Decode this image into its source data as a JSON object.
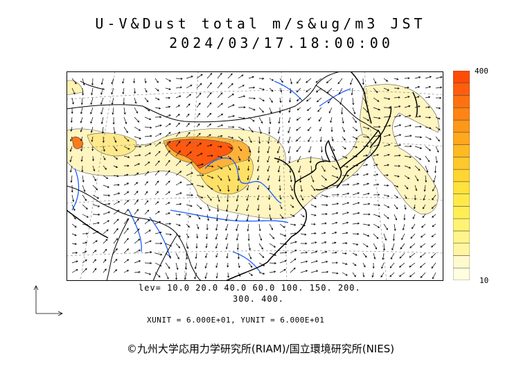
{
  "title": {
    "line1": "U-V&Dust total m/s&ug/m3 JST",
    "line2": "2024/03/17.18:00:00"
  },
  "colorbar": {
    "max_label": "400",
    "min_label": "10",
    "colors": [
      "#ffffe0",
      "#fffacd",
      "#fff5a0",
      "#fff58a",
      "#fff373",
      "#ffef55",
      "#ffe94a",
      "#ffe23c",
      "#ffd532",
      "#ffc82a",
      "#ffb922",
      "#ffa81c",
      "#ff9718",
      "#ff8414",
      "#ff7110",
      "#ff5e0c",
      "#ff4b08"
    ]
  },
  "levels": {
    "line1": "lev= 10.0 20.0 40.0 60.0 100. 150. 200.",
    "line2": "300. 400."
  },
  "units": "XUNIT = 6.000E+01, YUNIT = 6.000E+01",
  "credit": "©九州大学応用力学研究所(RIAM)/国立環境研究所(NIES)",
  "map_colors": {
    "coast": "#000000",
    "border": "#000000",
    "river": "#1a5cff",
    "dust_low": "#fff3b0",
    "dust_mid": "#ffe066",
    "dust_high": "#ff7a1a",
    "dust_max": "#ff4a00"
  }
}
